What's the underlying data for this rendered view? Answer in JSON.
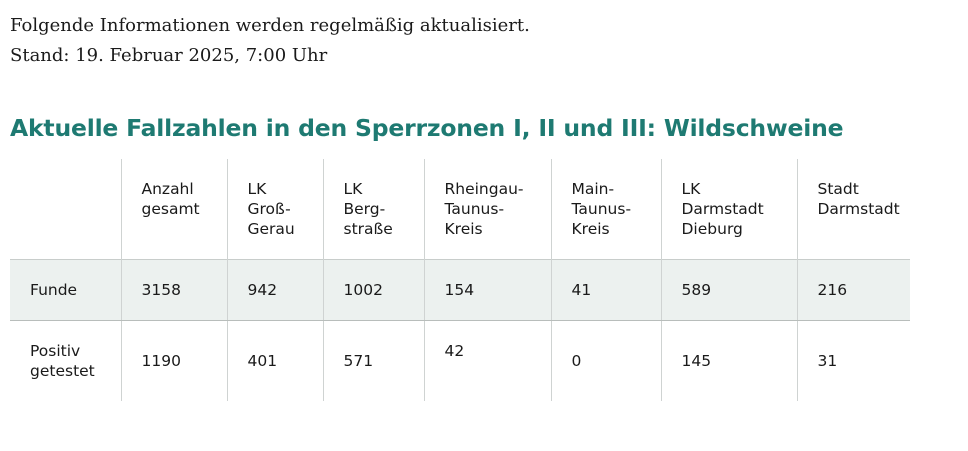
{
  "intro": {
    "line1": "Folgende Informationen werden regelmäßig aktualisiert.",
    "line2": "Stand: 19. Februar 2025, 7:00 Uhr"
  },
  "title": "Aktuelle Fallzahlen in den Sperrzonen I, II und III: Wildschweine",
  "table": {
    "columns": [
      "",
      "Anzahl\ngesamt",
      "LK\nGroß-\nGerau",
      "LK\nBerg-\nstraße",
      "Rheingau-\nTaunus-\nKreis",
      "Main-\nTaunus-\nKreis",
      "LK\nDarmstadt\nDieburg",
      "Stadt\nDarmstadt"
    ],
    "rows": [
      {
        "label": "Funde",
        "values": [
          "3158",
          "942",
          "1002",
          "154",
          "41",
          "589",
          "216"
        ]
      },
      {
        "label": "Positiv\ngetestet",
        "values": [
          "1190",
          "401",
          "571",
          "42",
          "0",
          "145",
          "31"
        ]
      }
    ]
  }
}
